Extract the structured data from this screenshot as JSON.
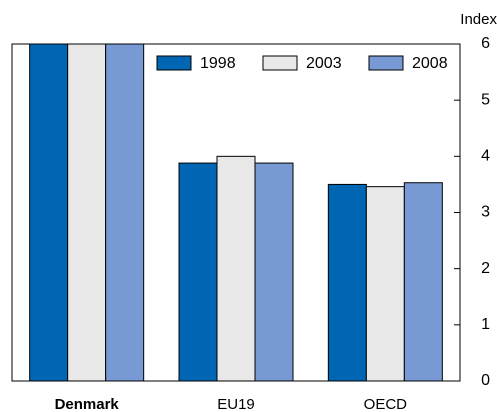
{
  "chart_data": {
    "type": "bar",
    "y_axis_label": "Index",
    "categories": [
      "Denmark",
      "EU19",
      "OECD"
    ],
    "series": [
      {
        "name": "1998",
        "color": "#0066b3",
        "values": [
          6,
          3.88,
          3.5
        ]
      },
      {
        "name": "2003",
        "color": "#e8e8e8",
        "values": [
          6,
          4.0,
          3.46
        ]
      },
      {
        "name": "2008",
        "color": "#7799d4",
        "values": [
          6,
          3.88,
          3.53
        ]
      }
    ],
    "ylim": [
      0,
      6
    ],
    "yticks": [
      0,
      1,
      2,
      3,
      4,
      5,
      6
    ],
    "y_axis_side": "right",
    "legend": "top-right"
  }
}
